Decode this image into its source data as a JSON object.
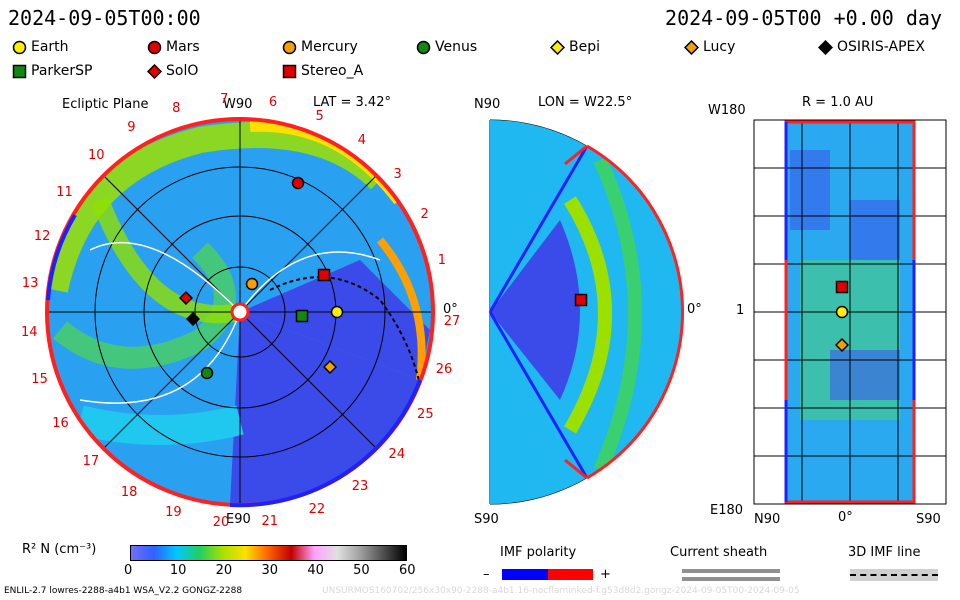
{
  "header": {
    "datetime_left": "2024-09-05T00:00",
    "datetime_right": "2024-09-05T00 +0.00 day"
  },
  "legend": [
    {
      "label": "Earth",
      "shape": "circle",
      "color": "#ffee00"
    },
    {
      "label": "Mars",
      "shape": "circle",
      "color": "#e00000"
    },
    {
      "label": "Mercury",
      "shape": "circle",
      "color": "#f5a000"
    },
    {
      "label": "Venus",
      "shape": "circle",
      "color": "#118811"
    },
    {
      "label": "Bepi",
      "shape": "diamond",
      "color": "#ffee00"
    },
    {
      "label": "Lucy",
      "shape": "diamond",
      "color": "#f5a000"
    },
    {
      "label": "OSIRIS-APEX",
      "shape": "diamond",
      "color": "#000000"
    },
    {
      "label": "ParkerSP",
      "shape": "square",
      "color": "#118811"
    },
    {
      "label": "SolO",
      "shape": "diamond",
      "color": "#e00000"
    },
    {
      "label": "Stereo_A",
      "shape": "square",
      "color": "#e00000"
    }
  ],
  "panel_ecliptic": {
    "title": "Ecliptic Plane",
    "top_label": "W90",
    "bottom_label": "E90",
    "right_label": "0°",
    "lat_label": "LAT = 3.42°",
    "rotation_numbers": [
      "1",
      "2",
      "3",
      "4",
      "5",
      "6",
      "7",
      "8",
      "9",
      "10",
      "11",
      "12",
      "13",
      "14",
      "15",
      "16",
      "17",
      "18",
      "19",
      "20",
      "21",
      "22",
      "23",
      "24",
      "25",
      "26",
      "27"
    ]
  },
  "panel_meridional": {
    "top_left": "N90",
    "bottom_left": "S90",
    "lon_label": "LON = W22.5°",
    "right_label": "0°"
  },
  "panel_map": {
    "title": "R = 1.0 AU",
    "top_left": "W180",
    "bottom_left": "E180",
    "left_mid": "1",
    "x_left": "N90",
    "x_mid": "0°",
    "x_right": "S90"
  },
  "colorbar": {
    "label": "R² N (cm⁻³)",
    "ticks": [
      "0",
      "10",
      "20",
      "30",
      "40",
      "50",
      "60"
    ],
    "stops": [
      "#6f6fff",
      "#3060ff",
      "#00c8ff",
      "#20d060",
      "#a8e000",
      "#ffe000",
      "#ff6000",
      "#c00000",
      "#ffa0ff",
      "#e0e0e0",
      "#a0a0a0",
      "#505050",
      "#000000"
    ]
  },
  "imf": {
    "label": "IMF polarity",
    "minus": "–",
    "plus": "+",
    "neg_color": "#0000ff",
    "pos_color": "#ff0000"
  },
  "current_sheath": {
    "label": "Current sheath"
  },
  "imf_line": {
    "label": "3D IMF line"
  },
  "footer": {
    "left": "ENLIL-2.7 lowres-2288-a4b1 WSA_V2.2 GONGZ-2288",
    "right": "UNSURMOS160702/256x30x90-2288-a4b1.16-nocflaminked-f.g53d8d2.gongz-2024-09-05T00-2024-09-05"
  }
}
